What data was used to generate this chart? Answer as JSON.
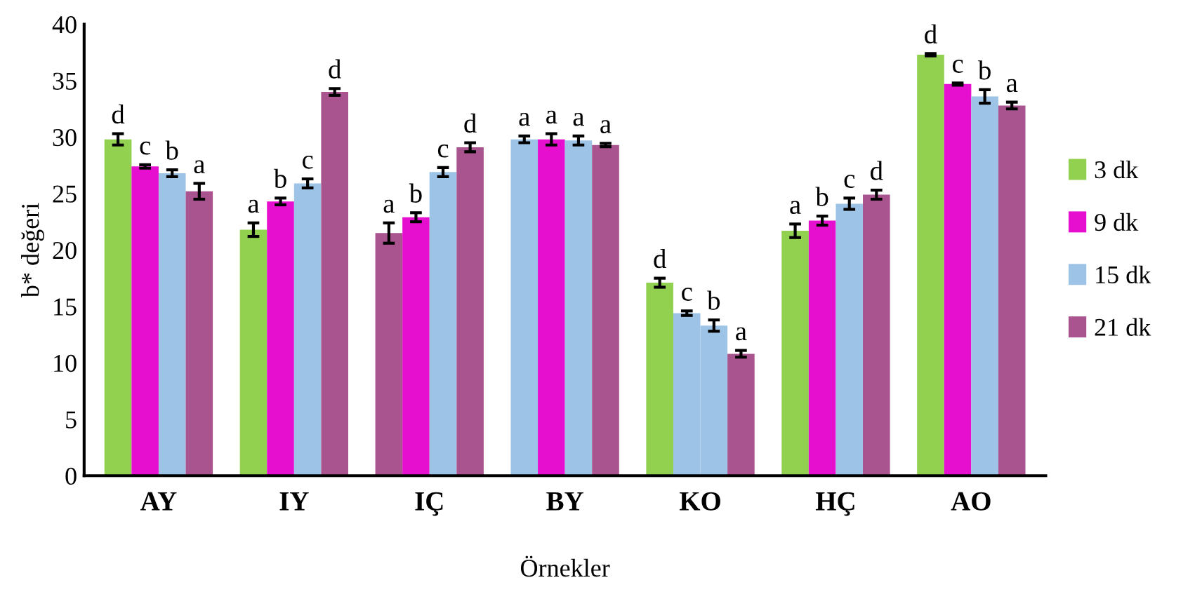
{
  "chart_data": {
    "type": "bar",
    "xlabel": "Örnekler",
    "ylabel": "b* değeri",
    "categories": [
      "AY",
      "IY",
      "IÇ",
      "BY",
      "KO",
      "HÇ",
      "AO"
    ],
    "ylim": [
      0,
      40
    ],
    "yticks": [
      0,
      5,
      10,
      15,
      20,
      25,
      30,
      35,
      40
    ],
    "grid": false,
    "legend": "right",
    "series": [
      {
        "name": "3 dk",
        "color": "#92d050",
        "colors": [
          "#92d050",
          "#92d050",
          "#a9538f",
          "#9dc3e6",
          "#92d050",
          "#92d050",
          "#92d050"
        ],
        "values": [
          29.8,
          21.8,
          21.5,
          29.8,
          17.1,
          21.7,
          37.3
        ],
        "errors": [
          0.5,
          0.6,
          0.9,
          0.3,
          0.4,
          0.6,
          0.1
        ],
        "value_labels": [
          "d",
          "a",
          "a",
          "a",
          "d",
          "a",
          "d"
        ]
      },
      {
        "name": "9 dk",
        "color": "#e60ecf",
        "colors": [
          "#e60ecf",
          "#e60ecf",
          "#e60ecf",
          "#e60ecf",
          "#9dc3e6",
          "#e60ecf",
          "#e60ecf"
        ],
        "values": [
          27.4,
          24.3,
          22.9,
          29.8,
          14.4,
          22.6,
          34.7
        ],
        "errors": [
          0.15,
          0.3,
          0.4,
          0.5,
          0.2,
          0.4,
          0.1
        ],
        "value_labels": [
          "c",
          "b",
          "b",
          "a",
          "c",
          "b",
          "c"
        ]
      },
      {
        "name": "15 dk",
        "color": "#9dc3e6",
        "values": [
          26.8,
          25.9,
          26.9,
          29.7,
          13.3,
          24.1,
          33.6
        ],
        "errors": [
          0.3,
          0.4,
          0.4,
          0.4,
          0.5,
          0.5,
          0.6
        ],
        "value_labels": [
          "b",
          "c",
          "c",
          "a",
          "b",
          "c",
          "b"
        ]
      },
      {
        "name": "21 dk",
        "color": "#a9538f",
        "values": [
          25.2,
          34.0,
          29.1,
          29.3,
          10.8,
          24.9,
          32.8
        ],
        "errors": [
          0.7,
          0.3,
          0.4,
          0.15,
          0.3,
          0.4,
          0.3
        ],
        "value_labels": [
          "a",
          "d",
          "d",
          "a",
          "a",
          "d",
          "a"
        ]
      }
    ]
  }
}
